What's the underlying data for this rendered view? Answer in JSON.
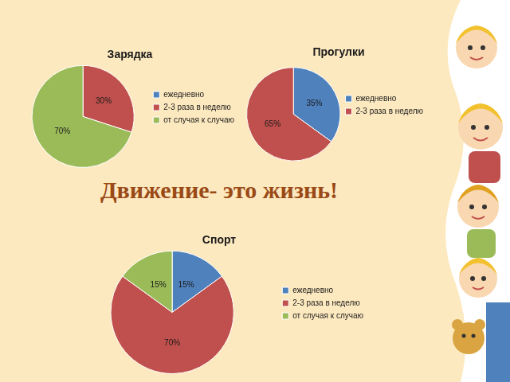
{
  "heading": "Движение- это жизнь!",
  "chart_data": [
    {
      "type": "pie",
      "title": "Зарядка",
      "categories": [
        "ежедневно",
        "2-3 раза в неделю",
        "от случая к случаю"
      ],
      "values": [
        0,
        30,
        70
      ],
      "value_labels": [
        null,
        "30%",
        "70%"
      ],
      "colors": [
        "#4f81bd",
        "#c0504d",
        "#9bbb59"
      ],
      "data_labels": true,
      "legend": "right"
    },
    {
      "type": "pie",
      "title": "Прогулки",
      "categories": [
        "ежедневно",
        "2-3 раза в неделю"
      ],
      "values": [
        35,
        65
      ],
      "value_labels": [
        "35%",
        "65%"
      ],
      "colors": [
        "#4f81bd",
        "#c0504d"
      ],
      "data_labels": true,
      "legend": "right"
    },
    {
      "type": "pie",
      "title": "Спорт",
      "categories": [
        "ежедневно",
        "2-3 раза в неделю",
        "от случая к случаю"
      ],
      "values": [
        15,
        70,
        15
      ],
      "value_labels": [
        "15%",
        "70%",
        "15%"
      ],
      "colors": [
        "#4f81bd",
        "#c0504d",
        "#9bbb59"
      ],
      "data_labels": true,
      "legend": "right"
    }
  ]
}
